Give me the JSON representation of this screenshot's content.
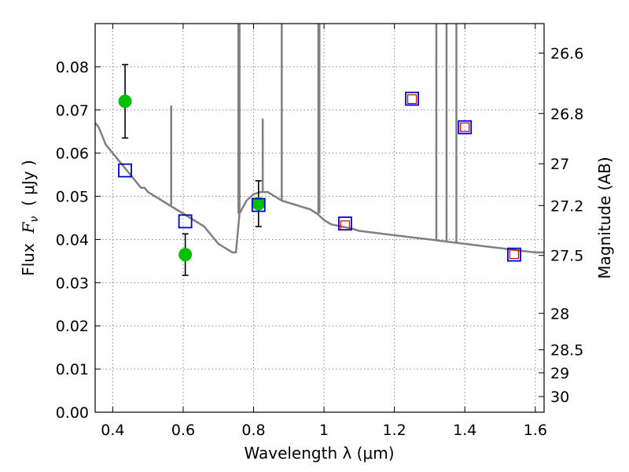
{
  "chart_data": {
    "type": "scatter",
    "title": "",
    "xlabel": "Wavelength  λ (μm)",
    "ylabel": "Flux  F_ν  ( μJy )",
    "ylabel_parts": {
      "prefix": "Flux  ",
      "var": "F",
      "sub": "ν",
      "unit": "  ( μJy )"
    },
    "y2label": "Magnitude (AB)",
    "xlim": [
      0.35,
      1.625
    ],
    "ylim": [
      0.0,
      0.09
    ],
    "grid": true,
    "x_ticks": [
      {
        "value": 0.4,
        "label": "0.4"
      },
      {
        "value": 0.6,
        "label": "0.6"
      },
      {
        "value": 0.8,
        "label": "0.8"
      },
      {
        "value": 1.0,
        "label": "1"
      },
      {
        "value": 1.2,
        "label": "1.2"
      },
      {
        "value": 1.4,
        "label": "1.4"
      },
      {
        "value": 1.6,
        "label": "1.6"
      }
    ],
    "y_ticks": [
      {
        "value": 0.0,
        "label": "0.00"
      },
      {
        "value": 0.01,
        "label": "0.01"
      },
      {
        "value": 0.02,
        "label": "0.02"
      },
      {
        "value": 0.03,
        "label": "0.03"
      },
      {
        "value": 0.04,
        "label": "0.04"
      },
      {
        "value": 0.05,
        "label": "0.05"
      },
      {
        "value": 0.06,
        "label": "0.06"
      },
      {
        "value": 0.07,
        "label": "0.07"
      },
      {
        "value": 0.08,
        "label": "0.08"
      }
    ],
    "y2_ticks": [
      {
        "value": 26.6,
        "label": "26.6"
      },
      {
        "value": 26.8,
        "label": "26.8"
      },
      {
        "value": 27.0,
        "label": "27"
      },
      {
        "value": 27.2,
        "label": "27.2"
      },
      {
        "value": 27.5,
        "label": "27.5"
      },
      {
        "value": 28.0,
        "label": "28"
      },
      {
        "value": 28.5,
        "label": "28.5"
      },
      {
        "value": 29.0,
        "label": "29"
      },
      {
        "value": 30.0,
        "label": "30"
      }
    ],
    "series": [
      {
        "kind": "line",
        "color": "#808080",
        "points": [
          [
            0.35,
            0.067
          ],
          [
            0.36,
            0.066
          ],
          [
            0.37,
            0.064
          ],
          [
            0.38,
            0.062
          ],
          [
            0.39,
            0.061
          ],
          [
            0.4,
            0.06
          ],
          [
            0.41,
            0.059
          ],
          [
            0.42,
            0.058
          ],
          [
            0.43,
            0.057
          ],
          [
            0.44,
            0.056
          ],
          [
            0.45,
            0.055
          ],
          [
            0.46,
            0.054
          ],
          [
            0.47,
            0.053
          ],
          [
            0.48,
            0.052
          ],
          [
            0.49,
            0.052
          ],
          [
            0.5,
            0.051
          ],
          [
            0.52,
            0.05
          ],
          [
            0.54,
            0.049
          ],
          [
            0.56,
            0.048
          ],
          [
            0.58,
            0.047
          ],
          [
            0.6,
            0.046
          ],
          [
            0.62,
            0.045
          ],
          [
            0.64,
            0.044
          ],
          [
            0.66,
            0.043
          ],
          [
            0.68,
            0.041
          ],
          [
            0.7,
            0.039
          ],
          [
            0.72,
            0.038
          ],
          [
            0.74,
            0.037
          ],
          [
            0.75,
            0.037
          ],
          [
            0.76,
            0.046
          ],
          [
            0.78,
            0.049
          ],
          [
            0.8,
            0.0505
          ],
          [
            0.82,
            0.051
          ],
          [
            0.84,
            0.051
          ],
          [
            0.86,
            0.05
          ],
          [
            0.88,
            0.049
          ],
          [
            0.9,
            0.0485
          ],
          [
            0.92,
            0.048
          ],
          [
            0.94,
            0.0475
          ],
          [
            0.96,
            0.047
          ],
          [
            0.98,
            0.046
          ],
          [
            1.0,
            0.0445
          ],
          [
            1.02,
            0.0435
          ],
          [
            1.05,
            0.043
          ],
          [
            1.08,
            0.0425
          ],
          [
            1.1,
            0.042
          ],
          [
            1.15,
            0.0415
          ],
          [
            1.2,
            0.041
          ],
          [
            1.25,
            0.0405
          ],
          [
            1.3,
            0.04
          ],
          [
            1.35,
            0.0395
          ],
          [
            1.4,
            0.039
          ],
          [
            1.45,
            0.0385
          ],
          [
            1.5,
            0.038
          ],
          [
            1.55,
            0.0375
          ],
          [
            1.6,
            0.037
          ],
          [
            1.625,
            0.037
          ]
        ],
        "emission_lines": [
          [
            0.566,
            0.071
          ],
          [
            0.757,
            0.095
          ],
          [
            0.76,
            0.095
          ],
          [
            0.826,
            0.068
          ],
          [
            0.88,
            0.095
          ],
          [
            0.984,
            0.095
          ],
          [
            0.987,
            0.095
          ],
          [
            1.319,
            0.095
          ],
          [
            1.348,
            0.095
          ],
          [
            1.376,
            0.095
          ]
        ]
      },
      {
        "kind": "errorbar",
        "color": "#00c000",
        "points": [
          {
            "x": 0.435,
            "y": 0.072,
            "err": 0.0085
          },
          {
            "x": 0.606,
            "y": 0.0365,
            "err": 0.0048
          },
          {
            "x": 0.814,
            "y": 0.0483,
            "err": 0.0053
          }
        ]
      },
      {
        "kind": "squares",
        "color": "#0000cc",
        "points": [
          [
            0.435,
            0.056
          ],
          [
            0.606,
            0.0442
          ],
          [
            0.814,
            0.048
          ],
          [
            1.06,
            0.0437
          ],
          [
            1.25,
            0.0726
          ],
          [
            1.4,
            0.066
          ],
          [
            1.54,
            0.0365
          ]
        ]
      },
      {
        "kind": "squares",
        "color": "#cc0000",
        "points": [
          [
            1.06,
            0.0433
          ],
          [
            1.25,
            0.0725
          ],
          [
            1.4,
            0.066
          ],
          [
            1.54,
            0.0366
          ]
        ]
      }
    ]
  }
}
